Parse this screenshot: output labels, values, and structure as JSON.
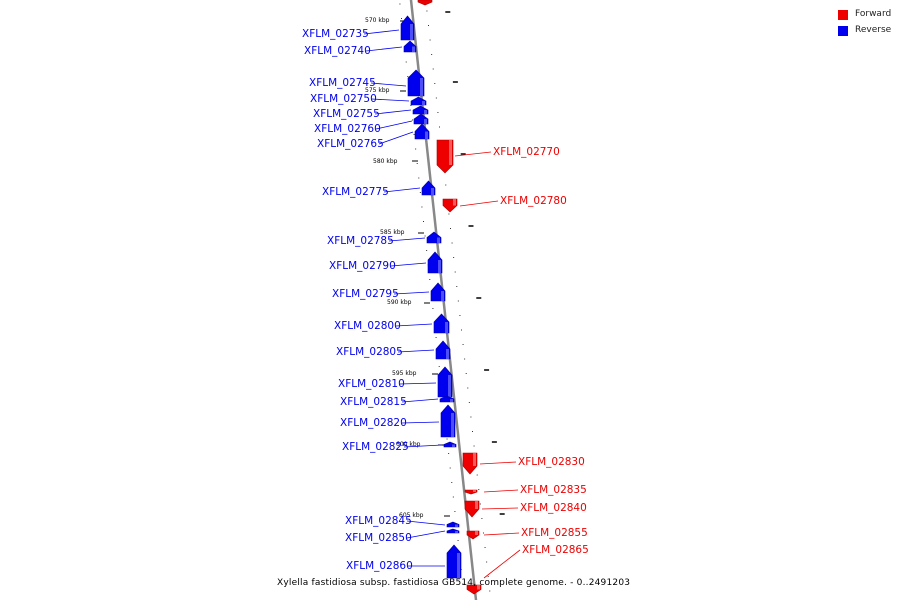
{
  "colors": {
    "forward": "#ee0000",
    "reverse": "#0000ee",
    "forward_dark": "#aa0000",
    "reverse_dark": "#0000aa",
    "axis": "#888888"
  },
  "legend": [
    {
      "label": "Forward",
      "color": "#ee0000"
    },
    {
      "label": "Reverse",
      "color": "#0000ee"
    }
  ],
  "caption": "Xylella fastidiosa subsp. fastidiosa GB514, complete genome. - 0..2491203",
  "ticks": [
    {
      "label": "570 kbp",
      "kbp": 570
    },
    {
      "label": "575 kbp",
      "kbp": 575
    },
    {
      "label": "580 kbp",
      "kbp": 580
    },
    {
      "label": "585 kbp",
      "kbp": 585
    },
    {
      "label": "590 kbp",
      "kbp": 590
    },
    {
      "label": "595 kbp",
      "kbp": 595
    },
    {
      "label": "600 kbp",
      "kbp": 600
    },
    {
      "label": "605 kbp",
      "kbp": 605
    }
  ],
  "genes": [
    {
      "name": "XFLM_02735",
      "strand": "reverse"
    },
    {
      "name": "XFLM_02740",
      "strand": "reverse"
    },
    {
      "name": "XFLM_02745",
      "strand": "reverse"
    },
    {
      "name": "XFLM_02750",
      "strand": "reverse"
    },
    {
      "name": "XFLM_02755",
      "strand": "reverse"
    },
    {
      "name": "XFLM_02760",
      "strand": "reverse"
    },
    {
      "name": "XFLM_02765",
      "strand": "reverse"
    },
    {
      "name": "XFLM_02770",
      "strand": "forward"
    },
    {
      "name": "XFLM_02775",
      "strand": "reverse"
    },
    {
      "name": "XFLM_02780",
      "strand": "forward"
    },
    {
      "name": "XFLM_02785",
      "strand": "reverse"
    },
    {
      "name": "XFLM_02790",
      "strand": "reverse"
    },
    {
      "name": "XFLM_02795",
      "strand": "reverse"
    },
    {
      "name": "XFLM_02800",
      "strand": "reverse"
    },
    {
      "name": "XFLM_02805",
      "strand": "reverse"
    },
    {
      "name": "XFLM_02810",
      "strand": "reverse"
    },
    {
      "name": "XFLM_02815",
      "strand": "reverse"
    },
    {
      "name": "XFLM_02820",
      "strand": "reverse"
    },
    {
      "name": "XFLM_02825",
      "strand": "reverse"
    },
    {
      "name": "XFLM_02830",
      "strand": "forward"
    },
    {
      "name": "XFLM_02835",
      "strand": "forward"
    },
    {
      "name": "XFLM_02840",
      "strand": "forward"
    },
    {
      "name": "XFLM_02845",
      "strand": "reverse"
    },
    {
      "name": "XFLM_02850",
      "strand": "reverse"
    },
    {
      "name": "XFLM_02855",
      "strand": "forward"
    },
    {
      "name": "XFLM_02860",
      "strand": "reverse"
    },
    {
      "name": "XFLM_02865",
      "strand": "forward"
    }
  ]
}
